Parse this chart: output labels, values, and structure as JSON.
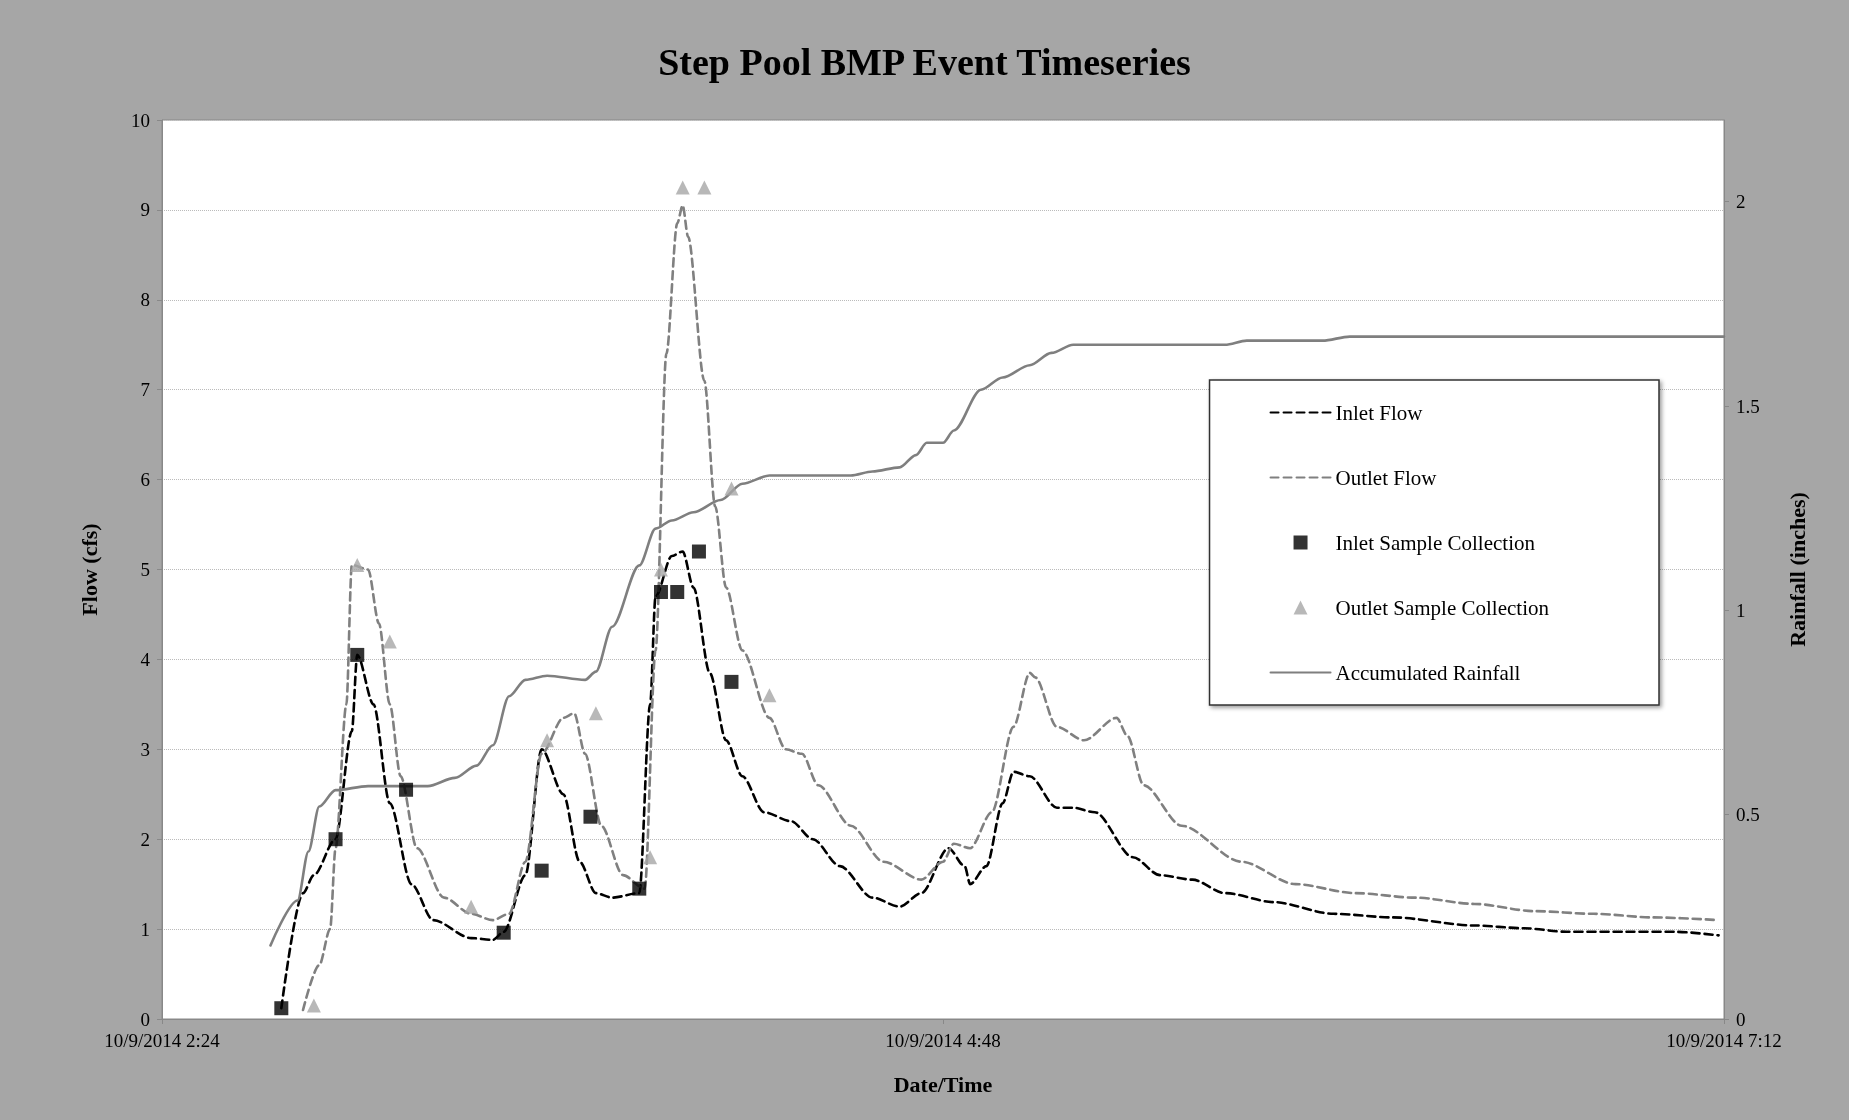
{
  "chart_data": {
    "type": "line",
    "title": "Step Pool BMP Event Timeseries",
    "xlabel": "Date/Time",
    "ylabel": "Flow (cfs)",
    "y2label": "Rainfall (inches)",
    "xlim": [
      "2014-10-09T02:24",
      "2014-10-09T07:12"
    ],
    "xticks": [
      {
        "value": "2014-10-09T02:24",
        "label": "10/9/2014 2:24"
      },
      {
        "value": "2014-10-09T04:48",
        "label": "10/9/2014 4:48"
      },
      {
        "value": "2014-10-09T07:12",
        "label": "10/9/2014 7:12"
      }
    ],
    "ylim": [
      0,
      10
    ],
    "yticks": [
      0,
      1,
      2,
      3,
      4,
      5,
      6,
      7,
      8,
      9,
      10
    ],
    "y2lim": [
      0,
      2.2
    ],
    "y2ticks": [
      0,
      0.5,
      1,
      1.5,
      2
    ],
    "grid": "y",
    "legend": "right",
    "series": [
      {
        "name": "Inlet Flow",
        "color": "#000000",
        "line_style": "dashed",
        "marker": "none",
        "x": [
          "2014-10-09T02:46",
          "2014-10-09T02:50",
          "2014-10-09T02:52",
          "2014-10-09T02:56",
          "2014-10-09T02:59",
          "2014-10-09T03:00",
          "2014-10-09T03:03",
          "2014-10-09T03:06",
          "2014-10-09T03:10",
          "2014-10-09T03:14",
          "2014-10-09T03:21",
          "2014-10-09T03:25",
          "2014-10-09T03:27",
          "2014-10-09T03:31",
          "2014-10-09T03:34",
          "2014-10-09T03:38",
          "2014-10-09T03:41",
          "2014-10-09T03:44",
          "2014-10-09T03:47",
          "2014-10-09T03:52",
          "2014-10-09T03:54",
          "2014-10-09T03:55",
          "2014-10-09T03:58",
          "2014-10-09T04:00",
          "2014-10-09T04:02",
          "2014-10-09T04:05",
          "2014-10-09T04:08",
          "2014-10-09T04:11",
          "2014-10-09T04:15",
          "2014-10-09T04:20",
          "2014-10-09T04:24",
          "2014-10-09T04:29",
          "2014-10-09T04:35",
          "2014-10-09T04:40",
          "2014-10-09T04:44",
          "2014-10-09T04:49",
          "2014-10-09T04:52",
          "2014-10-09T04:53",
          "2014-10-09T04:56",
          "2014-10-09T04:59",
          "2014-10-09T05:01",
          "2014-10-09T05:04",
          "2014-10-09T05:09",
          "2014-10-09T05:12",
          "2014-10-09T05:16",
          "2014-10-09T05:23",
          "2014-10-09T05:28",
          "2014-10-09T05:34",
          "2014-10-09T05:40",
          "2014-10-09T05:49",
          "2014-10-09T06:00",
          "2014-10-09T06:11",
          "2014-10-09T06:26",
          "2014-10-09T06:35",
          "2014-10-09T06:43",
          "2014-10-09T06:54",
          "2014-10-09T07:03",
          "2014-10-09T07:11"
        ],
        "values": [
          0.12,
          1.4,
          1.6,
          2.0,
          3.2,
          4.05,
          3.5,
          2.4,
          1.5,
          1.1,
          0.9,
          0.88,
          0.97,
          1.6,
          3.0,
          2.5,
          1.75,
          1.4,
          1.35,
          1.4,
          3.5,
          4.7,
          5.15,
          5.2,
          4.8,
          3.85,
          3.1,
          2.7,
          2.3,
          2.2,
          2.0,
          1.7,
          1.35,
          1.25,
          1.4,
          1.9,
          1.7,
          1.5,
          1.7,
          2.4,
          2.75,
          2.7,
          2.35,
          2.35,
          2.3,
          1.8,
          1.6,
          1.55,
          1.4,
          1.3,
          1.17,
          1.13,
          1.04,
          1.01,
          0.97,
          0.97,
          0.97,
          0.93
        ]
      },
      {
        "name": "Outlet Flow",
        "color": "#808080",
        "line_style": "dashed",
        "marker": "none",
        "x": [
          "2014-10-09T02:50",
          "2014-10-09T02:53",
          "2014-10-09T02:55",
          "2014-10-09T02:56",
          "2014-10-09T02:58",
          "2014-10-09T02:59",
          "2014-10-09T03:02",
          "2014-10-09T03:04",
          "2014-10-09T03:06",
          "2014-10-09T03:08",
          "2014-10-09T03:11",
          "2014-10-09T03:16",
          "2014-10-09T03:21",
          "2014-10-09T03:25",
          "2014-10-09T03:28",
          "2014-10-09T03:31",
          "2014-10-09T03:34",
          "2014-10-09T03:38",
          "2014-10-09T03:40",
          "2014-10-09T03:42",
          "2014-10-09T03:45",
          "2014-10-09T03:49",
          "2014-10-09T03:53",
          "2014-10-09T03:55",
          "2014-10-09T03:57",
          "2014-10-09T03:59",
          "2014-10-09T04:00",
          "2014-10-09T04:01",
          "2014-10-09T04:04",
          "2014-10-09T04:06",
          "2014-10-09T04:08",
          "2014-10-09T04:11",
          "2014-10-09T04:16",
          "2014-10-09T04:19",
          "2014-10-09T04:22",
          "2014-10-09T04:25",
          "2014-10-09T04:31",
          "2014-10-09T04:37",
          "2014-10-09T04:44",
          "2014-10-09T04:48",
          "2014-10-09T04:50",
          "2014-10-09T04:53",
          "2014-10-09T04:57",
          "2014-10-09T05:01",
          "2014-10-09T05:04",
          "2014-10-09T05:05",
          "2014-10-09T05:09",
          "2014-10-09T05:14",
          "2014-10-09T05:20",
          "2014-10-09T05:22",
          "2014-10-09T05:25",
          "2014-10-09T05:32",
          "2014-10-09T05:43",
          "2014-10-09T05:53",
          "2014-10-09T06:04",
          "2014-10-09T06:15",
          "2014-10-09T06:26",
          "2014-10-09T06:37",
          "2014-10-09T06:48",
          "2014-10-09T06:59",
          "2014-10-09T07:11"
        ],
        "values": [
          0.1,
          0.6,
          1.0,
          1.9,
          3.5,
          5.05,
          5.0,
          4.4,
          3.5,
          2.7,
          1.9,
          1.35,
          1.17,
          1.1,
          1.17,
          1.75,
          2.95,
          3.35,
          3.4,
          2.95,
          2.15,
          1.6,
          1.45,
          4.1,
          7.4,
          8.85,
          9.05,
          8.7,
          7.1,
          5.7,
          4.8,
          4.1,
          3.35,
          3.0,
          2.95,
          2.6,
          2.15,
          1.75,
          1.55,
          1.75,
          1.95,
          1.9,
          2.3,
          3.25,
          3.85,
          3.8,
          3.25,
          3.1,
          3.35,
          3.15,
          2.6,
          2.15,
          1.75,
          1.5,
          1.4,
          1.35,
          1.28,
          1.2,
          1.17,
          1.13,
          1.1
        ]
      },
      {
        "name": "Inlet Sample Collection",
        "type": "scatter",
        "color": "#000000",
        "marker": "square",
        "x": [
          "2014-10-09T02:46",
          "2014-10-09T02:56",
          "2014-10-09T03:00",
          "2014-10-09T03:09",
          "2014-10-09T03:27",
          "2014-10-09T03:34",
          "2014-10-09T03:43",
          "2014-10-09T03:52",
          "2014-10-09T03:56",
          "2014-10-09T03:59",
          "2014-10-09T04:03",
          "2014-10-09T04:09"
        ],
        "values": [
          0.12,
          2.0,
          4.05,
          2.55,
          0.96,
          1.65,
          2.25,
          1.45,
          4.75,
          4.75,
          5.2,
          3.75
        ]
      },
      {
        "name": "Outlet Sample Collection",
        "type": "scatter",
        "color": "#a6a6a6",
        "marker": "triangle",
        "x": [
          "2014-10-09T02:52",
          "2014-10-09T03:00",
          "2014-10-09T03:06",
          "2014-10-09T03:21",
          "2014-10-09T03:35",
          "2014-10-09T03:44",
          "2014-10-09T03:54",
          "2014-10-09T03:56",
          "2014-10-09T04:00",
          "2014-10-09T04:04",
          "2014-10-09T04:09",
          "2014-10-09T04:16"
        ],
        "values": [
          0.15,
          5.05,
          4.2,
          1.25,
          3.1,
          3.4,
          1.8,
          5.0,
          9.25,
          9.25,
          5.9,
          3.6
        ]
      },
      {
        "name": "Accumulated Rainfall",
        "axis": "y2",
        "color": "#7f7f7f",
        "line_style": "solid",
        "marker": "none",
        "x": [
          "2014-10-09T02:44",
          "2014-10-09T02:49",
          "2014-10-09T02:51",
          "2014-10-09T02:53",
          "2014-10-09T02:56",
          "2014-10-09T03:02",
          "2014-10-09T03:13",
          "2014-10-09T03:18",
          "2014-10-09T03:22",
          "2014-10-09T03:25",
          "2014-10-09T03:28",
          "2014-10-09T03:31",
          "2014-10-09T03:35",
          "2014-10-09T03:42",
          "2014-10-09T03:44",
          "2014-10-09T03:47",
          "2014-10-09T03:52",
          "2014-10-09T03:55",
          "2014-10-09T03:58",
          "2014-10-09T04:02",
          "2014-10-09T04:07",
          "2014-10-09T04:11",
          "2014-10-09T04:16",
          "2014-10-09T04:22",
          "2014-10-09T04:31",
          "2014-10-09T04:35",
          "2014-10-09T04:40",
          "2014-10-09T04:43",
          "2014-10-09T04:45",
          "2014-10-09T04:48",
          "2014-10-09T04:50",
          "2014-10-09T04:55",
          "2014-10-09T04:59",
          "2014-10-09T05:04",
          "2014-10-09T05:08",
          "2014-10-09T05:12",
          "2014-10-09T05:16",
          "2014-10-09T05:32",
          "2014-10-09T05:40",
          "2014-10-09T05:44",
          "2014-10-09T05:58",
          "2014-10-09T06:03",
          "2014-10-09T06:15",
          "2014-10-09T06:37",
          "2014-10-09T07:12"
        ],
        "values": [
          0.18,
          0.29,
          0.41,
          0.52,
          0.56,
          0.57,
          0.57,
          0.59,
          0.62,
          0.67,
          0.79,
          0.83,
          0.84,
          0.83,
          0.85,
          0.96,
          1.11,
          1.2,
          1.22,
          1.24,
          1.27,
          1.31,
          1.33,
          1.33,
          1.33,
          1.34,
          1.35,
          1.38,
          1.41,
          1.41,
          1.44,
          1.54,
          1.57,
          1.6,
          1.63,
          1.65,
          1.65,
          1.65,
          1.65,
          1.66,
          1.66,
          1.67,
          1.67,
          1.67,
          1.67
        ]
      }
    ]
  }
}
